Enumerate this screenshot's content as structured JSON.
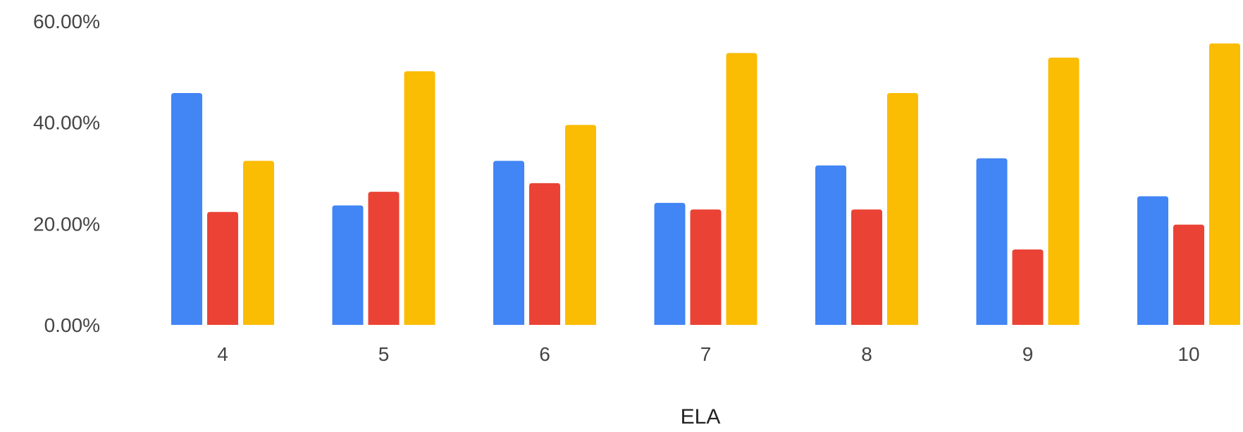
{
  "chart_data": {
    "type": "bar",
    "categories": [
      "4",
      "5",
      "6",
      "7",
      "8",
      "9",
      "10"
    ],
    "series": [
      {
        "color": "#4285F4",
        "values": [
          45.8,
          23.6,
          32.4,
          24.1,
          31.5,
          32.9,
          25.4
        ]
      },
      {
        "color": "#EA4335",
        "values": [
          22.3,
          26.3,
          28.0,
          22.8,
          22.8,
          14.9,
          19.8
        ]
      },
      {
        "color": "#FBBC04",
        "values": [
          32.4,
          50.1,
          39.5,
          53.7,
          45.8,
          52.8,
          55.6
        ]
      }
    ],
    "y_ticks": [
      "0.00%",
      "20.00%",
      "40.00%",
      "60.00%"
    ],
    "ylim": [
      0,
      60
    ],
    "xlabel": "ELA",
    "ylabel": "",
    "title": "",
    "grid": false,
    "legend": "none"
  }
}
